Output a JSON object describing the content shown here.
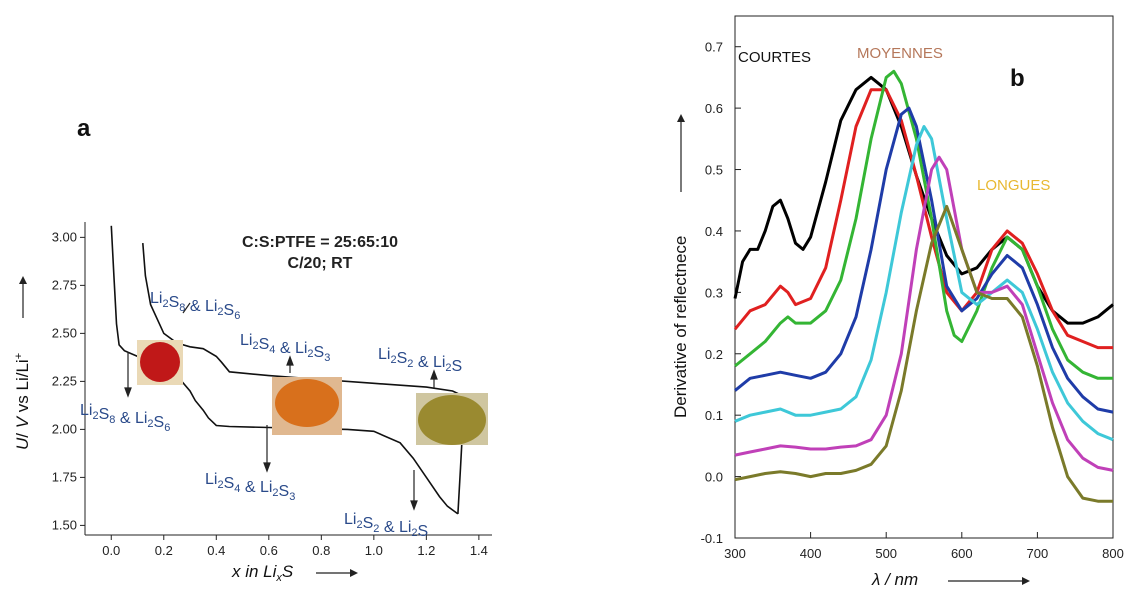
{
  "chart_data": [
    {
      "panel": "a",
      "type": "line",
      "xlabel": "x in LixS",
      "ylabel": "U/ V vs Li/Li⁺",
      "xlim": [
        -0.1,
        1.45
      ],
      "ylim": [
        1.45,
        3.08
      ],
      "xticks": [
        "0.0",
        "0.2",
        "0.4",
        "0.6",
        "0.8",
        "1.0",
        "1.2",
        "1.4"
      ],
      "yticks": [
        "1.50",
        "1.75",
        "2.00",
        "2.25",
        "2.50",
        "2.75",
        "3.00"
      ],
      "annotation": [
        "C:S:PTFE = 25:65:10",
        "C/20; RT"
      ],
      "series": [
        {
          "x": [
            0.0,
            0.01,
            0.02,
            0.03,
            0.05,
            0.1,
            0.2,
            0.25,
            0.3,
            0.32,
            0.35,
            0.37,
            0.4,
            0.45,
            0.6,
            0.9,
            1.0,
            1.1,
            1.15,
            1.2,
            1.25,
            1.28,
            1.3,
            1.32
          ],
          "y": [
            3.06,
            2.8,
            2.55,
            2.44,
            2.41,
            2.38,
            2.34,
            2.28,
            2.2,
            2.15,
            2.1,
            2.06,
            2.02,
            2.015,
            2.01,
            2.0,
            1.99,
            1.93,
            1.85,
            1.75,
            1.65,
            1.6,
            1.58,
            1.56
          ]
        },
        {
          "x": [
            1.32,
            1.33,
            1.34,
            1.33,
            1.3,
            1.2,
            1.0,
            0.8,
            0.6,
            0.45,
            0.42,
            0.4,
            0.35,
            0.3,
            0.25,
            0.2,
            0.15,
            0.13,
            0.12
          ],
          "y": [
            1.56,
            1.8,
            2.05,
            2.18,
            2.2,
            2.22,
            2.24,
            2.26,
            2.28,
            2.3,
            2.35,
            2.38,
            2.42,
            2.43,
            2.45,
            2.5,
            2.65,
            2.8,
            2.97
          ]
        }
      ],
      "labels": [
        {
          "species": [
            [
              "Li",
              "2"
            ],
            [
              "S",
              "8"
            ],
            " & ",
            [
              "Li",
              "2"
            ],
            [
              "S",
              "6"
            ]
          ],
          "where": "above"
        },
        {
          "species": [
            [
              "Li",
              "2"
            ],
            [
              "S",
              "8"
            ],
            " & ",
            [
              "Li",
              "2"
            ],
            [
              "S",
              "6"
            ]
          ],
          "where": "below"
        },
        {
          "species": [
            [
              "Li",
              "2"
            ],
            [
              "S",
              "4"
            ],
            " & ",
            [
              "Li",
              "2"
            ],
            [
              "S",
              "3"
            ]
          ],
          "where": "above"
        },
        {
          "species": [
            [
              "Li",
              "2"
            ],
            [
              "S",
              "4"
            ],
            " & ",
            [
              "Li",
              "2"
            ],
            [
              "S",
              "3"
            ]
          ],
          "where": "below"
        },
        {
          "species": [
            [
              "Li",
              "2"
            ],
            [
              "S",
              "2"
            ],
            " & ",
            [
              "Li",
              "2"
            ],
            "S"
          ],
          "where": "above"
        },
        {
          "species": [
            [
              "Li",
              "2"
            ],
            [
              "S",
              "2"
            ],
            " & ",
            [
              "Li",
              "2"
            ],
            "S"
          ],
          "where": "below"
        }
      ],
      "photo_colors": [
        "#c01818",
        "#d8701c",
        "#9a8a30"
      ]
    },
    {
      "panel": "b",
      "type": "line",
      "xlabel": "λ / nm",
      "ylabel": "Derivative of reflectnece",
      "xlim": [
        300,
        800
      ],
      "ylim": [
        -0.1,
        0.75
      ],
      "xticks": [
        300,
        400,
        500,
        600,
        700,
        800
      ],
      "yticks": [
        "-0.1",
        "0.0",
        "0.1",
        "0.2",
        "0.3",
        "0.4",
        "0.5",
        "0.6",
        "0.7"
      ],
      "bands": [
        {
          "label": "COURTES",
          "color": "#111111"
        },
        {
          "label": "MOYENNES",
          "color": "#b5775a"
        },
        {
          "label": "LONGUES",
          "color": "#e8b830"
        }
      ],
      "series": [
        {
          "color": "#000000",
          "x": [
            300,
            310,
            320,
            330,
            340,
            350,
            360,
            370,
            380,
            390,
            400,
            420,
            440,
            460,
            480,
            500,
            520,
            540,
            560,
            580,
            600,
            620,
            640,
            660,
            680,
            700,
            720,
            740,
            760,
            780,
            800
          ],
          "y": [
            0.29,
            0.35,
            0.37,
            0.37,
            0.4,
            0.44,
            0.45,
            0.42,
            0.38,
            0.37,
            0.39,
            0.48,
            0.58,
            0.63,
            0.65,
            0.63,
            0.57,
            0.49,
            0.42,
            0.36,
            0.33,
            0.34,
            0.37,
            0.39,
            0.37,
            0.31,
            0.27,
            0.25,
            0.25,
            0.26,
            0.28
          ]
        },
        {
          "color": "#e02020",
          "x": [
            300,
            320,
            340,
            360,
            370,
            380,
            400,
            420,
            440,
            460,
            480,
            500,
            520,
            540,
            560,
            580,
            600,
            620,
            640,
            660,
            680,
            700,
            720,
            740,
            760,
            780,
            800
          ],
          "y": [
            0.24,
            0.27,
            0.28,
            0.31,
            0.3,
            0.28,
            0.29,
            0.34,
            0.45,
            0.57,
            0.63,
            0.63,
            0.58,
            0.49,
            0.39,
            0.3,
            0.27,
            0.3,
            0.37,
            0.4,
            0.38,
            0.33,
            0.27,
            0.23,
            0.22,
            0.21,
            0.21
          ]
        },
        {
          "color": "#34b534",
          "x": [
            300,
            320,
            340,
            360,
            370,
            380,
            400,
            420,
            440,
            460,
            480,
            500,
            510,
            520,
            540,
            560,
            580,
            590,
            600,
            620,
            640,
            660,
            680,
            700,
            720,
            740,
            760,
            780,
            800
          ],
          "y": [
            0.18,
            0.2,
            0.22,
            0.25,
            0.26,
            0.25,
            0.25,
            0.27,
            0.32,
            0.42,
            0.55,
            0.65,
            0.66,
            0.64,
            0.55,
            0.42,
            0.27,
            0.23,
            0.22,
            0.27,
            0.34,
            0.39,
            0.37,
            0.31,
            0.24,
            0.19,
            0.17,
            0.16,
            0.16
          ]
        },
        {
          "color": "#1f3ca8",
          "x": [
            300,
            320,
            340,
            360,
            380,
            400,
            420,
            440,
            460,
            480,
            500,
            520,
            530,
            540,
            560,
            580,
            600,
            620,
            640,
            660,
            680,
            700,
            720,
            740,
            760,
            780,
            800
          ],
          "y": [
            0.14,
            0.16,
            0.165,
            0.17,
            0.165,
            0.16,
            0.17,
            0.2,
            0.26,
            0.37,
            0.5,
            0.59,
            0.6,
            0.57,
            0.45,
            0.31,
            0.27,
            0.29,
            0.33,
            0.36,
            0.34,
            0.28,
            0.21,
            0.16,
            0.13,
            0.11,
            0.105
          ]
        },
        {
          "color": "#3ec8d8",
          "x": [
            300,
            320,
            340,
            360,
            380,
            400,
            420,
            440,
            460,
            480,
            500,
            520,
            540,
            550,
            560,
            580,
            600,
            620,
            640,
            660,
            680,
            700,
            720,
            740,
            760,
            780,
            800
          ],
          "y": [
            0.09,
            0.1,
            0.105,
            0.11,
            0.1,
            0.1,
            0.105,
            0.11,
            0.13,
            0.19,
            0.3,
            0.43,
            0.54,
            0.57,
            0.55,
            0.42,
            0.3,
            0.28,
            0.3,
            0.32,
            0.3,
            0.24,
            0.17,
            0.12,
            0.09,
            0.07,
            0.06
          ]
        },
        {
          "color": "#c040b8",
          "x": [
            300,
            320,
            340,
            360,
            380,
            400,
            420,
            440,
            460,
            480,
            500,
            520,
            540,
            560,
            570,
            580,
            600,
            620,
            640,
            660,
            680,
            700,
            720,
            740,
            760,
            780,
            800
          ],
          "y": [
            0.035,
            0.04,
            0.045,
            0.05,
            0.048,
            0.045,
            0.045,
            0.048,
            0.05,
            0.06,
            0.1,
            0.2,
            0.37,
            0.5,
            0.52,
            0.5,
            0.37,
            0.3,
            0.3,
            0.31,
            0.28,
            0.2,
            0.12,
            0.06,
            0.03,
            0.015,
            0.01
          ]
        },
        {
          "color": "#7a7a2a",
          "x": [
            300,
            320,
            340,
            360,
            380,
            400,
            420,
            440,
            460,
            480,
            500,
            520,
            540,
            560,
            580,
            600,
            620,
            640,
            660,
            680,
            700,
            720,
            740,
            760,
            780,
            800
          ],
          "y": [
            -0.005,
            0.0,
            0.005,
            0.008,
            0.005,
            0.0,
            0.005,
            0.005,
            0.01,
            0.02,
            0.05,
            0.14,
            0.27,
            0.38,
            0.44,
            0.37,
            0.3,
            0.29,
            0.29,
            0.26,
            0.18,
            0.08,
            0.0,
            -0.035,
            -0.04,
            -0.04
          ]
        }
      ]
    }
  ],
  "panel_a": {
    "label": "a"
  },
  "panel_b": {
    "label": "b"
  }
}
